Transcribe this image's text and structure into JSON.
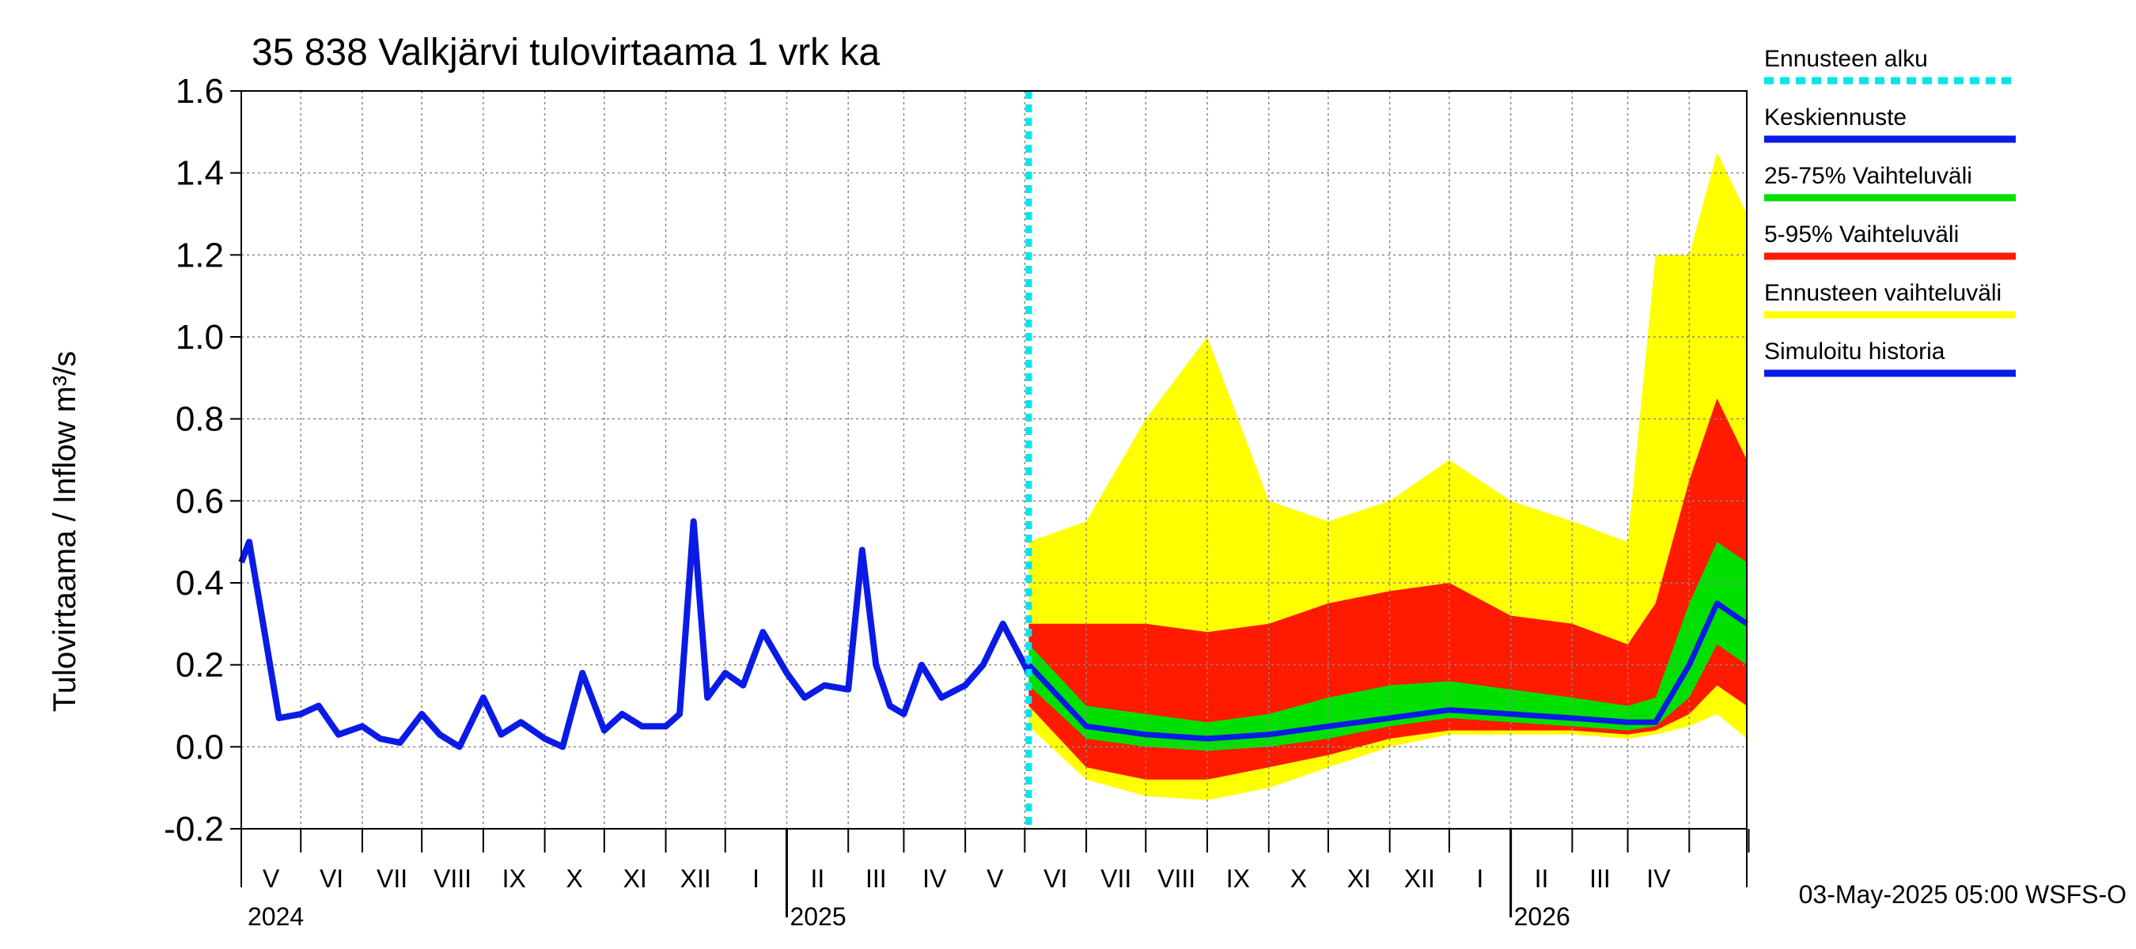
{
  "chart_data": {
    "type": "area",
    "title": "35 838 Valkjärvi tulovirtaama 1 vrk ka",
    "ylabel": "Tulovirtaama / Inflow    m³/s",
    "ylim": [
      -0.2,
      1.6
    ],
    "yticks": [
      "-0.2",
      "0.0",
      "0.2",
      "0.4",
      "0.6",
      "0.8",
      "1.0",
      "1.2",
      "1.4",
      "1.6"
    ],
    "xlim": [
      "2024-04-01",
      "2026-04-30"
    ],
    "forecast_start": "2025-05-03",
    "months": [
      "V",
      "VI",
      "VII",
      "VIII",
      "IX",
      "X",
      "XI",
      "XII",
      "I",
      "II",
      "III",
      "IV",
      "V",
      "VI",
      "VII",
      "VIII",
      "IX",
      "X",
      "XI",
      "XII",
      "I",
      "II",
      "III",
      "IV"
    ],
    "years": [
      "2024",
      "2025",
      "2026"
    ],
    "grid": true,
    "legend": {
      "placement": "right",
      "entries": [
        {
          "label": "Ennusteen alku",
          "color": "#00e5ee",
          "dashed": true
        },
        {
          "label": "Keskiennuste",
          "color": "#0a1be6"
        },
        {
          "label": "25-75% Vaihteluväli",
          "color": "#00e000"
        },
        {
          "label": "5-95% Vaihteluväli",
          "color": "#ff1a00"
        },
        {
          "label": "Ennusteen vaihteluväli",
          "color": "#ffff00"
        },
        {
          "label": "Simuloitu historia",
          "color": "#0a1be6"
        }
      ]
    },
    "history": {
      "name": "Simuloitu historia",
      "x": [
        "2024-04-01",
        "2024-04-05",
        "2024-04-12",
        "2024-04-20",
        "2024-05-01",
        "2024-05-10",
        "2024-05-20",
        "2024-06-01",
        "2024-06-10",
        "2024-06-20",
        "2024-07-01",
        "2024-07-10",
        "2024-07-20",
        "2024-08-01",
        "2024-08-10",
        "2024-08-20",
        "2024-09-01",
        "2024-09-10",
        "2024-09-20",
        "2024-10-01",
        "2024-10-10",
        "2024-10-20",
        "2024-11-01",
        "2024-11-08",
        "2024-11-15",
        "2024-11-22",
        "2024-12-01",
        "2024-12-10",
        "2024-12-20",
        "2025-01-01",
        "2025-01-10",
        "2025-01-20",
        "2025-02-01",
        "2025-02-08",
        "2025-02-15",
        "2025-02-22",
        "2025-03-01",
        "2025-03-10",
        "2025-03-20",
        "2025-04-01",
        "2025-04-10",
        "2025-04-20",
        "2025-05-03"
      ],
      "y": [
        0.45,
        0.5,
        0.3,
        0.07,
        0.08,
        0.1,
        0.03,
        0.05,
        0.02,
        0.01,
        0.08,
        0.03,
        0.0,
        0.12,
        0.03,
        0.06,
        0.02,
        0.0,
        0.18,
        0.04,
        0.08,
        0.05,
        0.05,
        0.08,
        0.55,
        0.12,
        0.18,
        0.15,
        0.28,
        0.18,
        0.12,
        0.15,
        0.14,
        0.48,
        0.2,
        0.1,
        0.08,
        0.2,
        0.12,
        0.15,
        0.2,
        0.3,
        0.18
      ]
    },
    "forecast": {
      "x": [
        "2025-05-03",
        "2025-06-01",
        "2025-07-01",
        "2025-08-01",
        "2025-09-01",
        "2025-10-01",
        "2025-11-01",
        "2025-12-01",
        "2026-01-01",
        "2026-02-01",
        "2026-03-01",
        "2026-03-15",
        "2026-04-01",
        "2026-04-15",
        "2026-04-30"
      ],
      "median": [
        0.2,
        0.05,
        0.03,
        0.02,
        0.03,
        0.05,
        0.07,
        0.09,
        0.08,
        0.07,
        0.06,
        0.06,
        0.2,
        0.35,
        0.3
      ],
      "p25": [
        0.15,
        0.02,
        0.0,
        -0.01,
        0.0,
        0.02,
        0.05,
        0.07,
        0.06,
        0.05,
        0.04,
        0.05,
        0.12,
        0.25,
        0.2
      ],
      "p75": [
        0.25,
        0.1,
        0.08,
        0.06,
        0.08,
        0.12,
        0.15,
        0.16,
        0.14,
        0.12,
        0.1,
        0.12,
        0.35,
        0.5,
        0.45
      ],
      "p5": [
        0.1,
        -0.05,
        -0.08,
        -0.08,
        -0.05,
        -0.02,
        0.02,
        0.04,
        0.04,
        0.04,
        0.03,
        0.04,
        0.08,
        0.15,
        0.1
      ],
      "p95": [
        0.3,
        0.3,
        0.3,
        0.28,
        0.3,
        0.35,
        0.38,
        0.4,
        0.32,
        0.3,
        0.25,
        0.35,
        0.65,
        0.85,
        0.7
      ],
      "min": [
        0.05,
        -0.08,
        -0.12,
        -0.13,
        -0.1,
        -0.05,
        0.0,
        0.03,
        0.03,
        0.03,
        0.02,
        0.03,
        0.05,
        0.08,
        0.02
      ],
      "max": [
        0.5,
        0.55,
        0.8,
        1.0,
        0.6,
        0.55,
        0.6,
        0.7,
        0.6,
        0.55,
        0.5,
        1.2,
        1.2,
        1.45,
        1.3
      ]
    }
  },
  "footer": {
    "timestamp": "03-May-2025 05:00 WSFS-O"
  }
}
